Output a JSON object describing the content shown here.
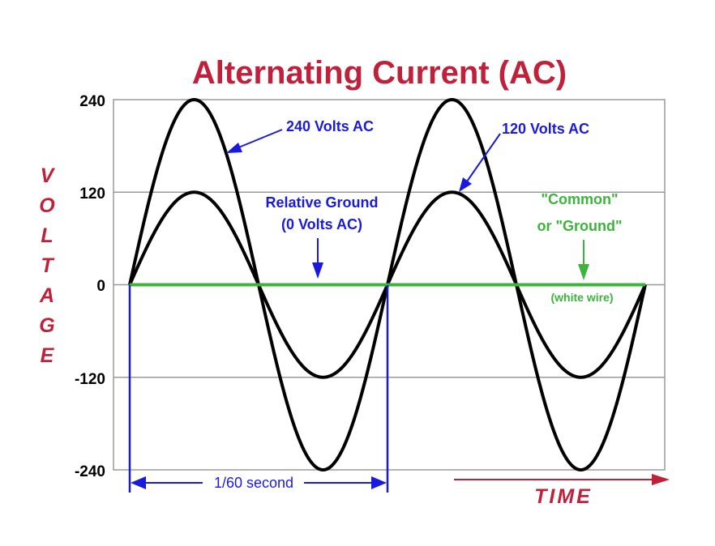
{
  "colors": {
    "title": "#c0203a",
    "wave": "#000000",
    "ground_line": "#3cb43c",
    "common_text": "#3cb43c",
    "blue_annotation": "#1a1adc",
    "time_axis": "#c0203a",
    "voltage_label": "#c0203a",
    "grid": "#999999"
  },
  "chart_data": {
    "type": "line",
    "title": "Alternating Current (AC)",
    "ylabel": "VOLTAGE",
    "xlabel": "TIME",
    "ylim": [
      -240,
      240
    ],
    "yticks": [
      "240",
      "120",
      "0",
      "-120",
      "-240"
    ],
    "ytick_values": [
      240,
      120,
      0,
      -120,
      -240
    ],
    "xlim": [
      0,
      2
    ],
    "x_unit": "cycles",
    "grid": true,
    "series": [
      {
        "name": "240 Volts AC",
        "amplitude": 240,
        "cycles": 2
      },
      {
        "name": "120 Volts AC",
        "amplitude": 120,
        "cycles": 2
      },
      {
        "name": "Relative Ground",
        "amplitude": 0,
        "cycles": 2
      }
    ],
    "annotations": {
      "v240": "240 Volts AC",
      "v120": "120 Volts AC",
      "ground_line1": "Relative Ground",
      "ground_line2": "(0 Volts AC)",
      "common_line1": "\"Common\"",
      "common_line2": "or \"Ground\"",
      "white_wire": "(white wire)",
      "period": "1/60 second"
    }
  }
}
